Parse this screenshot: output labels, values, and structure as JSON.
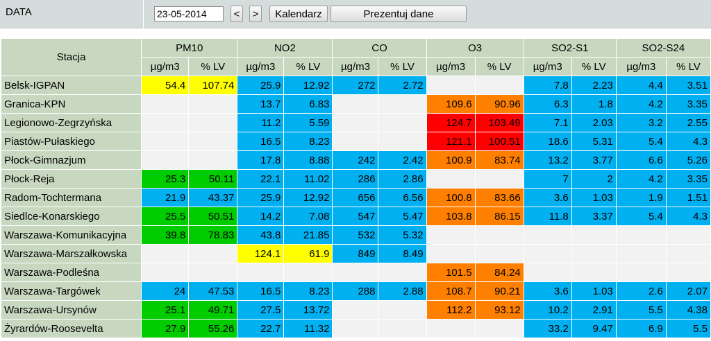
{
  "header": {
    "label": "DATA",
    "date_value": "23-05-2014",
    "prev_label": "<",
    "next_label": ">",
    "calendar_label": "Kalendarz",
    "present_label": "Prezentuj dane"
  },
  "table": {
    "station_header": "Stacja",
    "groups": [
      "PM10",
      "NO2",
      "CO",
      "O3",
      "SO2-S1",
      "SO2-S24"
    ],
    "units": [
      "µg/m3",
      "% LV"
    ],
    "colors": {
      "b": "#00b0f0",
      "g": "#f2f2f2",
      "y": "#ffff00",
      "G": "#00cc00",
      "o": "#ff8000",
      "r": "#ff0000"
    },
    "rows": [
      {
        "name": "Belsk-IGPAN",
        "values": [
          "54.4",
          "107.74",
          "25.9",
          "12.92",
          "272",
          "2.72",
          "",
          "",
          "7.8",
          "2.23",
          "4.4",
          "3.51"
        ],
        "colors": [
          "y",
          "y",
          "b",
          "b",
          "b",
          "b",
          "g",
          "g",
          "b",
          "b",
          "b",
          "b"
        ]
      },
      {
        "name": "Granica-KPN",
        "values": [
          "",
          "",
          "13.7",
          "6.83",
          "",
          "",
          "109.6",
          "90.96",
          "6.3",
          "1.8",
          "4.2",
          "3.35"
        ],
        "colors": [
          "g",
          "g",
          "b",
          "b",
          "g",
          "g",
          "o",
          "o",
          "b",
          "b",
          "b",
          "b"
        ]
      },
      {
        "name": "Legionowo-Zegrzyńska",
        "values": [
          "",
          "",
          "11.2",
          "5.59",
          "",
          "",
          "124.7",
          "103.49",
          "7.1",
          "2.03",
          "3.2",
          "2.55"
        ],
        "colors": [
          "g",
          "g",
          "b",
          "b",
          "g",
          "g",
          "r",
          "r",
          "b",
          "b",
          "b",
          "b"
        ]
      },
      {
        "name": "Piastów-Pułaskiego",
        "values": [
          "",
          "",
          "16.5",
          "8.23",
          "",
          "",
          "121.1",
          "100.51",
          "18.6",
          "5.31",
          "5.4",
          "4.3"
        ],
        "colors": [
          "g",
          "g",
          "b",
          "b",
          "g",
          "g",
          "r",
          "r",
          "b",
          "b",
          "b",
          "b"
        ]
      },
      {
        "name": "Płock-Gimnazjum",
        "values": [
          "",
          "",
          "17.8",
          "8.88",
          "242",
          "2.42",
          "100.9",
          "83.74",
          "13.2",
          "3.77",
          "6.6",
          "5.26"
        ],
        "colors": [
          "g",
          "g",
          "b",
          "b",
          "b",
          "b",
          "o",
          "o",
          "b",
          "b",
          "b",
          "b"
        ]
      },
      {
        "name": "Płock-Reja",
        "values": [
          "25.3",
          "50.11",
          "22.1",
          "11.02",
          "286",
          "2.86",
          "",
          "",
          "7",
          "2",
          "4.2",
          "3.35"
        ],
        "colors": [
          "G",
          "G",
          "b",
          "b",
          "b",
          "b",
          "g",
          "g",
          "b",
          "b",
          "b",
          "b"
        ]
      },
      {
        "name": "Radom-Tochtermana",
        "values": [
          "21.9",
          "43.37",
          "25.9",
          "12.92",
          "656",
          "6.56",
          "100.8",
          "83.66",
          "3.6",
          "1.03",
          "1.9",
          "1.51"
        ],
        "colors": [
          "b",
          "b",
          "b",
          "b",
          "b",
          "b",
          "o",
          "o",
          "b",
          "b",
          "b",
          "b"
        ]
      },
      {
        "name": "Siedlce-Konarskiego",
        "values": [
          "25.5",
          "50.51",
          "14.2",
          "7.08",
          "547",
          "5.47",
          "103.8",
          "86.15",
          "11.8",
          "3.37",
          "5.4",
          "4.3"
        ],
        "colors": [
          "G",
          "G",
          "b",
          "b",
          "b",
          "b",
          "o",
          "o",
          "b",
          "b",
          "b",
          "b"
        ]
      },
      {
        "name": "Warszawa-Komunikacyjna",
        "values": [
          "39.8",
          "78.83",
          "43.8",
          "21.85",
          "532",
          "5.32",
          "",
          "",
          "",
          "",
          "",
          ""
        ],
        "colors": [
          "G",
          "G",
          "b",
          "b",
          "b",
          "b",
          "g",
          "g",
          "g",
          "g",
          "g",
          "g"
        ]
      },
      {
        "name": "Warszawa-Marszałkowska",
        "values": [
          "",
          "",
          "124.1",
          "61.9",
          "849",
          "8.49",
          "",
          "",
          "",
          "",
          "",
          ""
        ],
        "colors": [
          "g",
          "g",
          "y",
          "y",
          "b",
          "b",
          "g",
          "g",
          "g",
          "g",
          "g",
          "g"
        ]
      },
      {
        "name": "Warszawa-Podleśna",
        "values": [
          "",
          "",
          "",
          "",
          "",
          "",
          "101.5",
          "84.24",
          "",
          "",
          "",
          ""
        ],
        "colors": [
          "g",
          "g",
          "g",
          "g",
          "g",
          "g",
          "o",
          "o",
          "g",
          "g",
          "g",
          "g"
        ]
      },
      {
        "name": "Warszawa-Targówek",
        "values": [
          "24",
          "47.53",
          "16.5",
          "8.23",
          "288",
          "2.88",
          "108.7",
          "90.21",
          "3.6",
          "1.03",
          "2.6",
          "2.07"
        ],
        "colors": [
          "b",
          "b",
          "b",
          "b",
          "b",
          "b",
          "o",
          "o",
          "b",
          "b",
          "b",
          "b"
        ]
      },
      {
        "name": "Warszawa-Ursynów",
        "values": [
          "25.1",
          "49.71",
          "27.5",
          "13.72",
          "",
          "",
          "112.2",
          "93.12",
          "10.2",
          "2.91",
          "5.5",
          "4.38"
        ],
        "colors": [
          "G",
          "G",
          "b",
          "b",
          "g",
          "g",
          "o",
          "o",
          "b",
          "b",
          "b",
          "b"
        ]
      },
      {
        "name": "Żyrardów-Roosevelta",
        "values": [
          "27.9",
          "55.26",
          "22.7",
          "11.32",
          "",
          "",
          "",
          "",
          "33.2",
          "9.47",
          "6.9",
          "5.5"
        ],
        "colors": [
          "G",
          "G",
          "b",
          "b",
          "g",
          "g",
          "g",
          "g",
          "b",
          "b",
          "b",
          "b"
        ]
      }
    ]
  }
}
